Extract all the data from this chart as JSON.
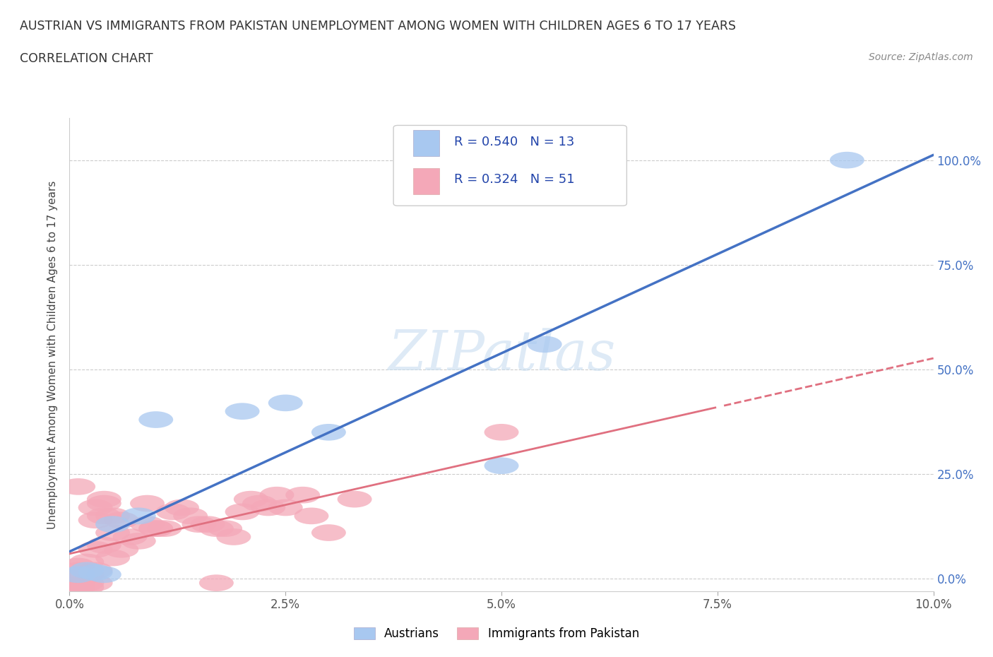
{
  "title_line1": "AUSTRIAN VS IMMIGRANTS FROM PAKISTAN UNEMPLOYMENT AMONG WOMEN WITH CHILDREN AGES 6 TO 17 YEARS",
  "title_line2": "CORRELATION CHART",
  "source": "Source: ZipAtlas.com",
  "ylabel": "Unemployment Among Women with Children Ages 6 to 17 years",
  "xlim": [
    0.0,
    0.1
  ],
  "ylim": [
    -0.03,
    1.1
  ],
  "ylim_display": [
    0.0,
    1.0
  ],
  "xtick_labels": [
    "0.0%",
    "2.5%",
    "5.0%",
    "7.5%",
    "10.0%"
  ],
  "xtick_vals": [
    0.0,
    0.025,
    0.05,
    0.075,
    0.1
  ],
  "ytick_labels": [
    "0.0%",
    "25.0%",
    "50.0%",
    "75.0%",
    "100.0%"
  ],
  "ytick_vals": [
    0.0,
    0.25,
    0.5,
    0.75,
    1.0
  ],
  "austrian_color": "#a8c8f0",
  "pakistan_color": "#f4a8b8",
  "austrian_line_color": "#4472c4",
  "pakistan_line_color": "#e07080",
  "r_austrian": 0.54,
  "n_austrian": 13,
  "r_pakistan": 0.324,
  "n_pakistan": 51,
  "watermark": "ZIPatlas",
  "watermark_color": "#c8ddf0",
  "austrian_x": [
    0.001,
    0.002,
    0.003,
    0.004,
    0.005,
    0.008,
    0.01,
    0.02,
    0.025,
    0.03,
    0.05,
    0.055,
    0.09
  ],
  "austrian_y": [
    0.01,
    0.02,
    0.015,
    0.01,
    0.13,
    0.15,
    0.38,
    0.4,
    0.42,
    0.35,
    0.27,
    0.56,
    1.0
  ],
  "pakistan_x": [
    0.001,
    0.001,
    0.001,
    0.001,
    0.001,
    0.001,
    0.002,
    0.002,
    0.002,
    0.002,
    0.003,
    0.003,
    0.003,
    0.003,
    0.003,
    0.004,
    0.004,
    0.004,
    0.004,
    0.005,
    0.005,
    0.005,
    0.006,
    0.006,
    0.007,
    0.008,
    0.009,
    0.009,
    0.01,
    0.01,
    0.011,
    0.012,
    0.013,
    0.014,
    0.015,
    0.016,
    0.017,
    0.017,
    0.018,
    0.019,
    0.02,
    0.021,
    0.022,
    0.023,
    0.024,
    0.025,
    0.027,
    0.028,
    0.03,
    0.033,
    0.05
  ],
  "pakistan_y": [
    0.02,
    -0.01,
    -0.02,
    0.03,
    -0.015,
    0.22,
    0.01,
    -0.01,
    0.04,
    -0.02,
    0.02,
    0.07,
    0.14,
    0.17,
    -0.01,
    0.08,
    0.15,
    0.18,
    0.19,
    0.11,
    0.15,
    0.05,
    0.07,
    0.14,
    0.1,
    0.09,
    0.13,
    0.18,
    0.12,
    0.12,
    0.12,
    0.16,
    0.17,
    0.15,
    0.13,
    0.13,
    0.12,
    -0.01,
    0.12,
    0.1,
    0.16,
    0.19,
    0.18,
    0.17,
    0.2,
    0.17,
    0.2,
    0.15,
    0.11,
    0.19,
    0.35
  ]
}
